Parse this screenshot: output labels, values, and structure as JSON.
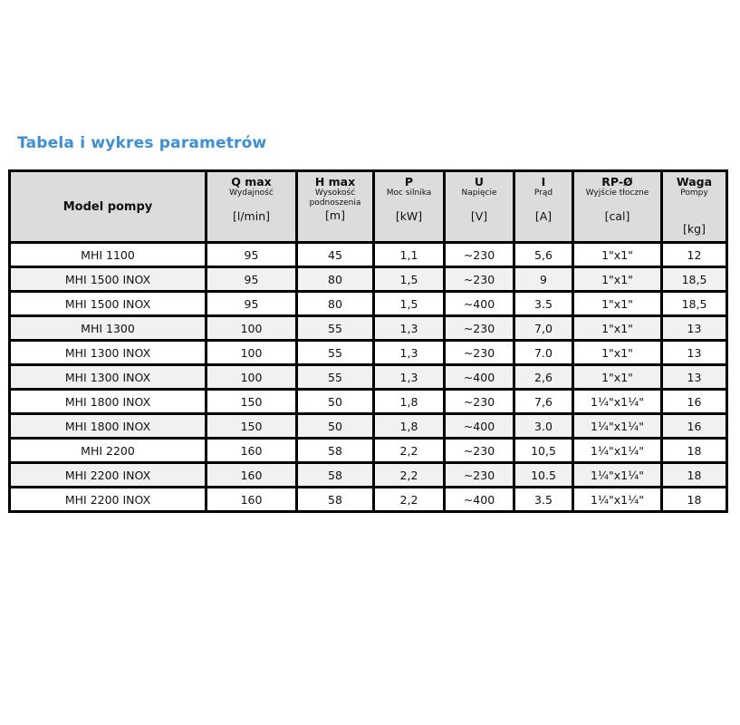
{
  "title": "Tabela i wykres parametrów",
  "colors": {
    "title": "#3a8fd6",
    "header_bg": "#dcdcdc",
    "alt_row_bg": "#f1f1f1",
    "border": "#000000"
  },
  "header": {
    "model": "Model pompy",
    "columns": [
      {
        "name": "Q max",
        "sub": "Wydajność",
        "unit": "[l/min]"
      },
      {
        "name": "H max",
        "sub": "Wysokość podnoszenia",
        "unit": "[m]"
      },
      {
        "name": "P",
        "sub": "Moc silnika",
        "unit": "[kW]"
      },
      {
        "name": "U",
        "sub": "Napięcie",
        "unit": "[V]"
      },
      {
        "name": "I",
        "sub": "Prąd",
        "unit": "[A]"
      },
      {
        "name": "RP-Ø",
        "sub": "Wyjście tłoczne",
        "unit": "[cal]"
      },
      {
        "name": "Waga",
        "sub": "Pompy",
        "unit": "[kg]"
      }
    ]
  },
  "rows": [
    [
      "MHI 1100",
      "95",
      "45",
      "1,1",
      "~230",
      "5,6",
      "1\"x1\"",
      "12"
    ],
    [
      "MHI 1500 INOX",
      "95",
      "80",
      "1,5",
      "~230",
      "9",
      "1\"x1\"",
      "18,5"
    ],
    [
      "MHI 1500 INOX",
      "95",
      "80",
      "1,5",
      "~400",
      "3.5",
      "1\"x1\"",
      "18,5"
    ],
    [
      "MHI 1300",
      "100",
      "55",
      "1,3",
      "~230",
      "7,0",
      "1\"x1\"",
      "13"
    ],
    [
      "MHI 1300 INOX",
      "100",
      "55",
      "1,3",
      "~230",
      "7.0",
      "1\"x1\"",
      "13"
    ],
    [
      "MHI 1300 INOX",
      "100",
      "55",
      "1,3",
      "~400",
      "2,6",
      "1\"x1\"",
      "13"
    ],
    [
      "MHI 1800 INOX",
      "150",
      "50",
      "1,8",
      "~230",
      "7,6",
      "1¼\"x1¼\"",
      "16"
    ],
    [
      "MHI 1800 INOX",
      "150",
      "50",
      "1,8",
      "~400",
      "3.0",
      "1¼\"x1¼\"",
      "16"
    ],
    [
      "MHI 2200",
      "160",
      "58",
      "2,2",
      "~230",
      "10,5",
      "1¼\"x1¼\"",
      "18"
    ],
    [
      "MHI 2200 INOX",
      "160",
      "58",
      "2,2",
      "~230",
      "10.5",
      "1¼\"x1¼\"",
      "18"
    ],
    [
      "MHI 2200 INOX",
      "160",
      "58",
      "2,2",
      "~400",
      "3.5",
      "1¼\"x1¼\"",
      "18"
    ]
  ]
}
